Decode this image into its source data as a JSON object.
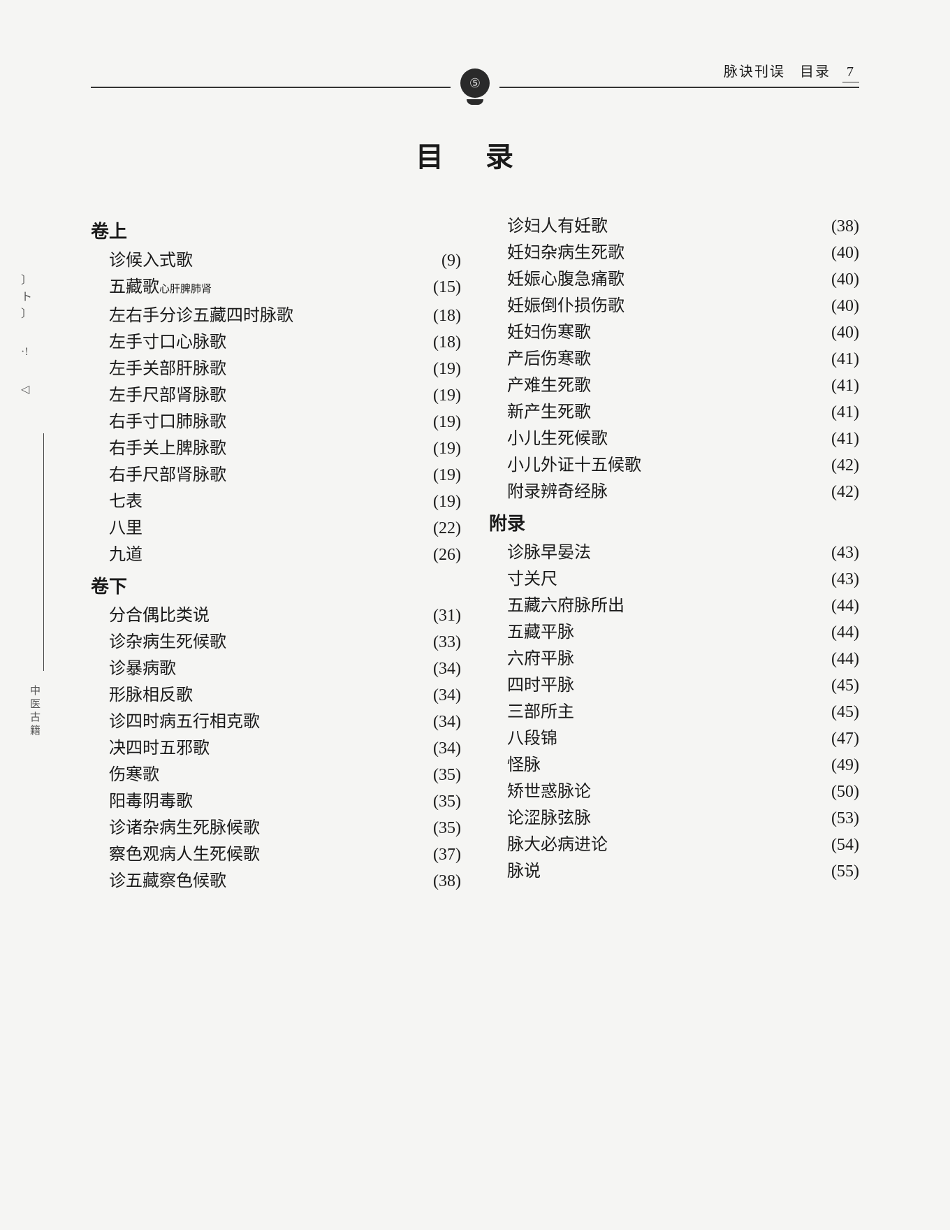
{
  "running_head": {
    "book": "脉诀刊误",
    "section": "目录",
    "page": "7"
  },
  "title": "目录",
  "emblem_glyph": "⑤",
  "side_marks": "、",
  "side_vertical": "中医古籍",
  "columns": [
    {
      "sections": [
        {
          "head": "卷上",
          "entries": [
            {
              "t": "诊候入式歌",
              "p": "(9)"
            },
            {
              "t": "五藏歌",
              "sub": "心肝脾肺肾",
              "p": "(15)"
            },
            {
              "t": "左右手分诊五藏四时脉歌",
              "p": "(18)"
            },
            {
              "t": "左手寸口心脉歌",
              "p": "(18)"
            },
            {
              "t": "左手关部肝脉歌",
              "p": "(19)"
            },
            {
              "t": "左手尺部肾脉歌",
              "p": "(19)"
            },
            {
              "t": "右手寸口肺脉歌",
              "p": "(19)"
            },
            {
              "t": "右手关上脾脉歌",
              "p": "(19)"
            },
            {
              "t": "右手尺部肾脉歌",
              "p": "(19)"
            },
            {
              "t": "七表",
              "p": "(19)"
            },
            {
              "t": "八里",
              "p": "(22)"
            },
            {
              "t": "九道",
              "p": "(26)"
            }
          ]
        },
        {
          "head": "卷下",
          "entries": [
            {
              "t": "分合偶比类说",
              "p": "(31)"
            },
            {
              "t": "诊杂病生死候歌",
              "p": "(33)"
            },
            {
              "t": "诊暴病歌",
              "p": "(34)"
            },
            {
              "t": "形脉相反歌",
              "p": "(34)"
            },
            {
              "t": "诊四时病五行相克歌",
              "p": "(34)"
            },
            {
              "t": "决四时五邪歌",
              "p": "(34)"
            },
            {
              "t": "伤寒歌",
              "p": "(35)"
            },
            {
              "t": "阳毒阴毒歌",
              "p": "(35)"
            },
            {
              "t": "诊诸杂病生死脉候歌",
              "p": "(35)"
            },
            {
              "t": "察色观病人生死候歌",
              "p": "(37)"
            },
            {
              "t": "诊五藏察色候歌",
              "p": "(38)"
            }
          ]
        }
      ]
    },
    {
      "sections": [
        {
          "head": "",
          "entries": [
            {
              "t": "诊妇人有妊歌",
              "p": "(38)"
            },
            {
              "t": "妊妇杂病生死歌",
              "p": "(40)"
            },
            {
              "t": "妊娠心腹急痛歌",
              "p": "(40)"
            },
            {
              "t": "妊娠倒仆损伤歌",
              "p": "(40)"
            },
            {
              "t": "妊妇伤寒歌",
              "p": "(40)"
            },
            {
              "t": "产后伤寒歌",
              "p": "(41)"
            },
            {
              "t": "产难生死歌",
              "p": "(41)"
            },
            {
              "t": "新产生死歌",
              "p": "(41)"
            },
            {
              "t": "小儿生死候歌",
              "p": "(41)"
            },
            {
              "t": "小儿外证十五候歌",
              "p": "(42)"
            },
            {
              "t": "附录辨奇经脉",
              "p": "(42)"
            }
          ]
        },
        {
          "head": "附录",
          "entries": [
            {
              "t": "诊脉早晏法",
              "p": "(43)"
            },
            {
              "t": "寸关尺",
              "p": "(43)"
            },
            {
              "t": "五藏六府脉所出",
              "p": "(44)"
            },
            {
              "t": "五藏平脉",
              "p": "(44)"
            },
            {
              "t": "六府平脉",
              "p": "(44)"
            },
            {
              "t": "四时平脉",
              "p": "(45)"
            },
            {
              "t": "三部所主",
              "p": "(45)"
            },
            {
              "t": "八段锦",
              "p": "(47)"
            },
            {
              "t": "怪脉",
              "p": "(49)"
            },
            {
              "t": "矫世惑脉论",
              "p": "(50)"
            },
            {
              "t": "论涩脉弦脉",
              "p": "(53)"
            },
            {
              "t": "脉大必病进论",
              "p": "(54)"
            },
            {
              "t": "脉说",
              "p": "(55)"
            }
          ]
        }
      ]
    }
  ]
}
